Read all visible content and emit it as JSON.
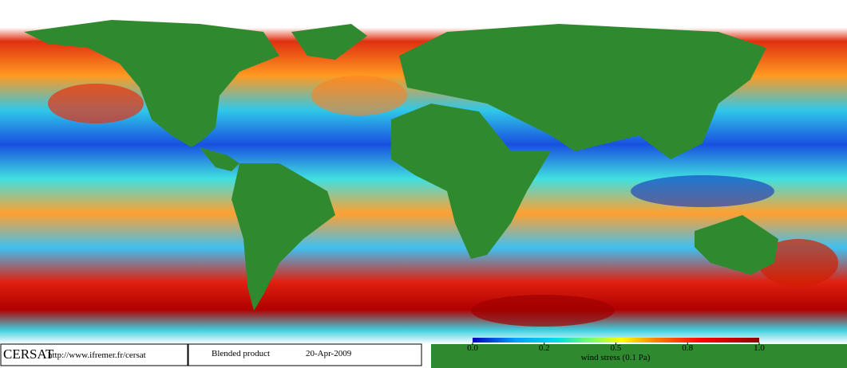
{
  "footer": {
    "logo": "CERSAT",
    "url": "http://www.ifremer.fr/cersat",
    "product": "Blended product",
    "date": "20-Apr-2009"
  },
  "colorbar": {
    "title": "wind stress (0.1 Pa)",
    "ticks": [
      {
        "value": 0,
        "label": "0.0"
      },
      {
        "value": 0.2,
        "label": "0.2"
      },
      {
        "value": 0.5,
        "label": "0.5"
      },
      {
        "value": 0.8,
        "label": "0.8"
      },
      {
        "value": 1,
        "label": "1.0"
      }
    ]
  }
}
